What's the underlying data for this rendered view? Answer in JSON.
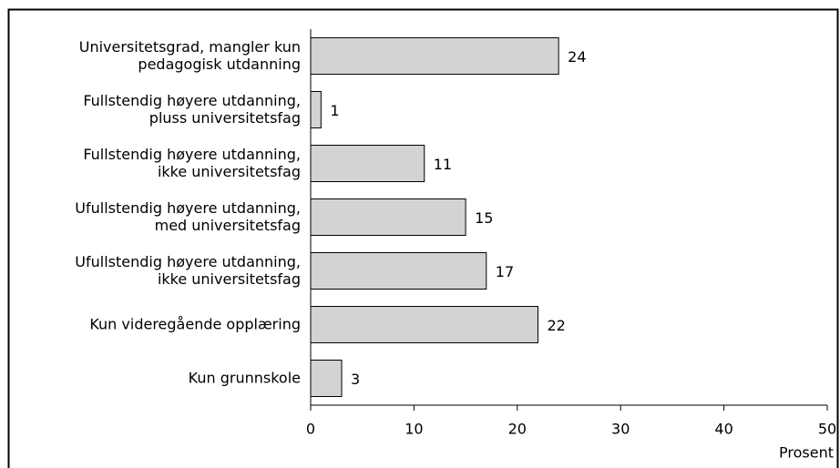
{
  "chart_data": {
    "type": "bar",
    "orientation": "horizontal",
    "categories": [
      [
        "Universitetsgrad, mangler kun",
        "pedagogisk utdanning"
      ],
      [
        "Fullstendig høyere utdanning,",
        "pluss universitetsfag"
      ],
      [
        "Fullstendig høyere utdanning,",
        "ikke universitetsfag"
      ],
      [
        "Ufullstendig høyere utdanning,",
        "med universitetsfag"
      ],
      [
        "Ufullstendig høyere utdanning,",
        "ikke universitetsfag"
      ],
      [
        "Kun videregående opplæring"
      ],
      [
        "Kun grunnskole"
      ]
    ],
    "values": [
      24,
      1,
      11,
      15,
      17,
      22,
      3
    ],
    "color": "#d3d3d3",
    "xlim": [
      0,
      50
    ],
    "xticks": [
      0,
      10,
      20,
      30,
      40,
      50
    ],
    "xlabel": "Prosent"
  }
}
